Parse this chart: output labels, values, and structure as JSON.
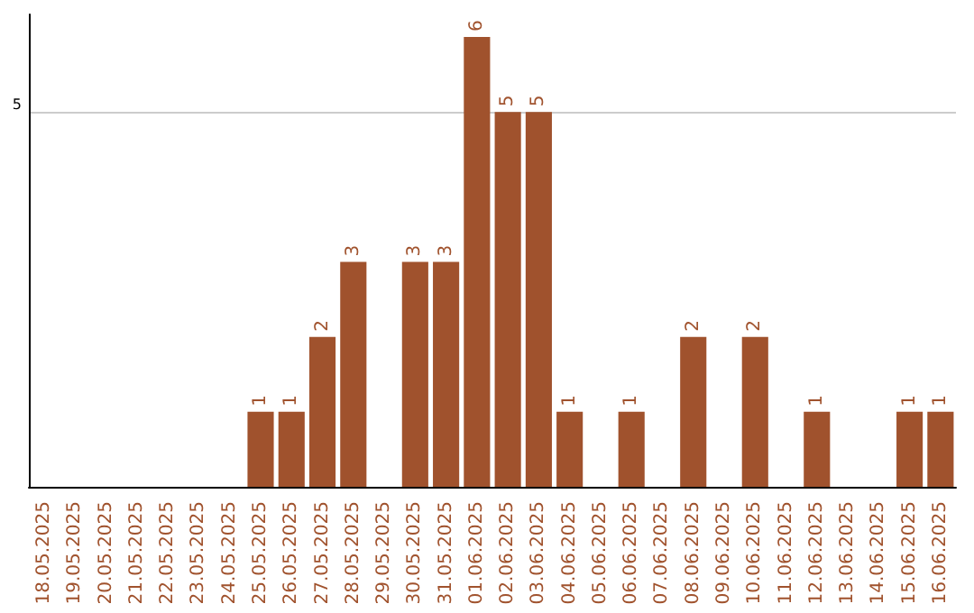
{
  "chart_data": {
    "type": "bar",
    "categories": [
      "18.05.2025",
      "19.05.2025",
      "20.05.2025",
      "21.05.2025",
      "22.05.2025",
      "23.05.2025",
      "24.05.2025",
      "25.05.2025",
      "26.05.2025",
      "27.05.2025",
      "28.05.2025",
      "29.05.2025",
      "30.05.2025",
      "31.05.2025",
      "01.06.2025",
      "02.06.2025",
      "03.06.2025",
      "04.06.2025",
      "05.06.2025",
      "06.06.2025",
      "07.06.2025",
      "08.06.2025",
      "09.06.2025",
      "10.06.2025",
      "11.06.2025",
      "12.06.2025",
      "13.06.2025",
      "14.06.2025",
      "15.06.2025",
      "16.06.2025"
    ],
    "values": [
      0,
      0,
      0,
      0,
      0,
      0,
      0,
      1,
      1,
      2,
      3,
      0,
      3,
      3,
      6,
      5,
      5,
      1,
      0,
      1,
      0,
      2,
      0,
      2,
      0,
      1,
      0,
      0,
      1,
      1
    ],
    "value_labels": [
      null,
      null,
      null,
      null,
      null,
      null,
      null,
      "1",
      "1",
      "2",
      "3",
      null,
      "3",
      "3",
      "6",
      "5",
      "5",
      "1",
      null,
      "1",
      null,
      "2",
      null,
      "2",
      null,
      "1",
      null,
      null,
      "1",
      "1"
    ],
    "color": "#a0522d",
    "ylim": [
      0,
      6.3
    ],
    "yticks": [
      5
    ],
    "grid": "y"
  }
}
